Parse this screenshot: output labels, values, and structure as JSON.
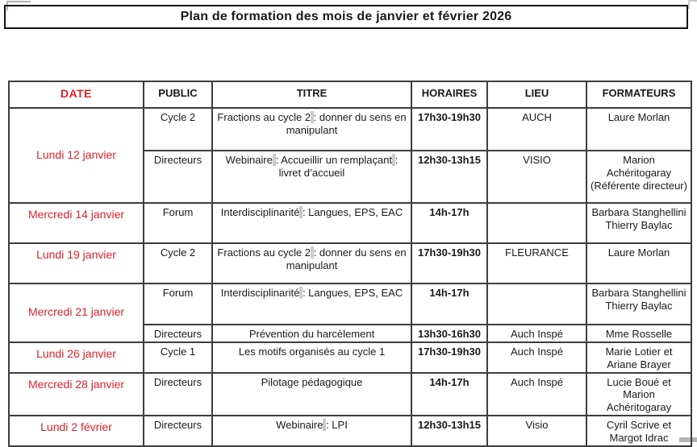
{
  "title": "Plan de formation des mois de janvier et février 2026",
  "colors": {
    "date_red": "#df2127"
  },
  "table": {
    "headers": [
      "DATE",
      "PUBLIC",
      "TITRE",
      "HORAIRES",
      "LIEU",
      "FORMATEURS"
    ],
    "rows": [
      {
        "date": "Lundi 12 janvier",
        "public": "Cycle 2",
        "titre": "Fractions au cycle 2 : donner du sens en manipulant",
        "horaires": "17h30-19h30",
        "lieu": "AUCH",
        "formateurs": "Laure Morlan"
      },
      {
        "public": "Directeurs",
        "titre": "Webinaire : Accueillir un remplaçant : livret d’accueil",
        "horaires": "12h30-13h15",
        "lieu": "VISIO",
        "formateurs": "Marion Achéritogaray (Référente directeur)"
      },
      {
        "date": "Mercredi 14 janvier",
        "public": "Forum",
        "titre": "Interdisciplinarité : Langues, EPS, EAC",
        "horaires": "14h-17h",
        "lieu": "",
        "formateurs": "Barbara Stanghellini Thierry Baylac"
      },
      {
        "date": "Lundi 19 janvier",
        "public": "Cycle 2",
        "titre": "Fractions au cycle 2 : donner du sens en manipulant",
        "horaires": "17h30-19h30",
        "lieu": "FLEURANCE",
        "formateurs": "Laure Morlan"
      },
      {
        "date": "Mercredi 21 janvier",
        "public": "Forum",
        "titre": "Interdisciplinarité : Langues, EPS, EAC",
        "horaires": "14h-17h",
        "lieu": "",
        "formateurs": "Barbara Stanghellini Thierry Baylac"
      },
      {
        "public": "Directeurs",
        "titre": "Prévention du harcèlement",
        "horaires": "13h30-16h30",
        "lieu": "Auch Inspé",
        "formateurs": "Mme Rosselle"
      },
      {
        "date": "Lundi 26 janvier",
        "public": "Cycle 1",
        "titre": "Les motifs organisés au cycle 1",
        "horaires": "17h30-19h30",
        "lieu": "Auch Inspé",
        "formateurs": "Marie Lotier et Ariane Brayer"
      },
      {
        "date": "Mercredi 28 janvier",
        "public": "Directeurs",
        "titre": "Pilotage pédagogique",
        "horaires": "14h-17h",
        "lieu": "Auch Inspé",
        "formateurs": "Lucie Boué et Marion Achéritogaray"
      },
      {
        "date": "Lundi 2 février",
        "public": "Directeurs",
        "titre": "Webinaire : LPI",
        "horaires": "12h30-13h15",
        "lieu": "Visio",
        "formateurs": "Cyril Scrive et Margot Idrac"
      }
    ]
  }
}
